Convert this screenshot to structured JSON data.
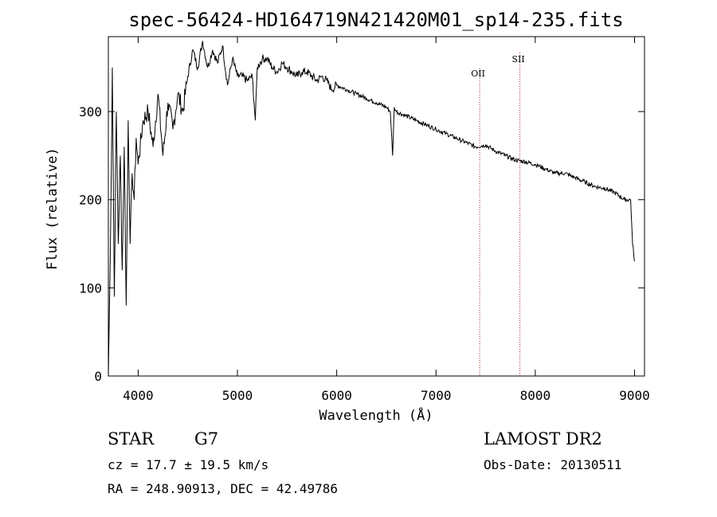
{
  "chart_data": {
    "type": "line",
    "title": "spec-56424-HD164719N421420M01_sp14-235.fits",
    "xlabel": "Wavelength (Å)",
    "ylabel": "Flux (relative)",
    "xlim": [
      3700,
      9100
    ],
    "ylim": [
      0,
      385
    ],
    "x_ticks": [
      4000,
      5000,
      6000,
      7000,
      8000,
      9000
    ],
    "y_ticks": [
      0,
      100,
      200,
      300
    ],
    "grid": false,
    "series": [
      {
        "x": [
          3700,
          3720,
          3740,
          3760,
          3780,
          3800,
          3820,
          3840,
          3860,
          3880,
          3900,
          3920,
          3940,
          3960,
          3980,
          4000,
          4050,
          4100,
          4150,
          4200,
          4250,
          4300,
          4350,
          4400,
          4450,
          4500,
          4550,
          4600,
          4650,
          4700,
          4750,
          4800,
          4850,
          4900,
          4950,
          5000,
          5050,
          5100,
          5150,
          5180,
          5200,
          5250,
          5300,
          5350,
          5400,
          5450,
          5500,
          5550,
          5600,
          5650,
          5700,
          5750,
          5800,
          5850,
          5900,
          5950,
          6000,
          6100,
          6200,
          6300,
          6400,
          6500,
          6540,
          6563,
          6580,
          6600,
          6700,
          6800,
          6900,
          7000,
          7100,
          7200,
          7300,
          7400,
          7500,
          7600,
          7700,
          7800,
          7900,
          8000,
          8100,
          8200,
          8300,
          8400,
          8500,
          8600,
          8700,
          8800,
          8900,
          8960,
          8980,
          9000
        ],
        "y": [
          0,
          140,
          350,
          90,
          300,
          150,
          250,
          120,
          260,
          80,
          290,
          150,
          230,
          200,
          270,
          240,
          290,
          300,
          260,
          320,
          250,
          310,
          280,
          320,
          300,
          340,
          370,
          350,
          380,
          350,
          370,
          355,
          375,
          330,
          360,
          340,
          340,
          335,
          340,
          290,
          350,
          360,
          360,
          350,
          345,
          355,
          350,
          345,
          340,
          345,
          345,
          340,
          335,
          340,
          335,
          325,
          330,
          325,
          320,
          315,
          310,
          305,
          300,
          250,
          305,
          300,
          295,
          290,
          285,
          280,
          275,
          270,
          265,
          260,
          262,
          255,
          250,
          245,
          243,
          240,
          235,
          230,
          230,
          225,
          220,
          215,
          213,
          208,
          200,
          200,
          150,
          130
        ]
      }
    ],
    "line_markers": [
      {
        "label": "OII",
        "x": 7440,
        "color": "#aa2222"
      },
      {
        "label": "SII",
        "x": 7845,
        "color": "#aa2222"
      }
    ]
  },
  "info": {
    "obj_class": "STAR",
    "subclass": "G7",
    "survey": "LAMOST DR2",
    "cz": "cz = 17.7 ± 19.5 km/s",
    "obs_date": "Obs-Date: 20130511",
    "radec": "RA = 248.90913, DEC =  42.49786"
  }
}
